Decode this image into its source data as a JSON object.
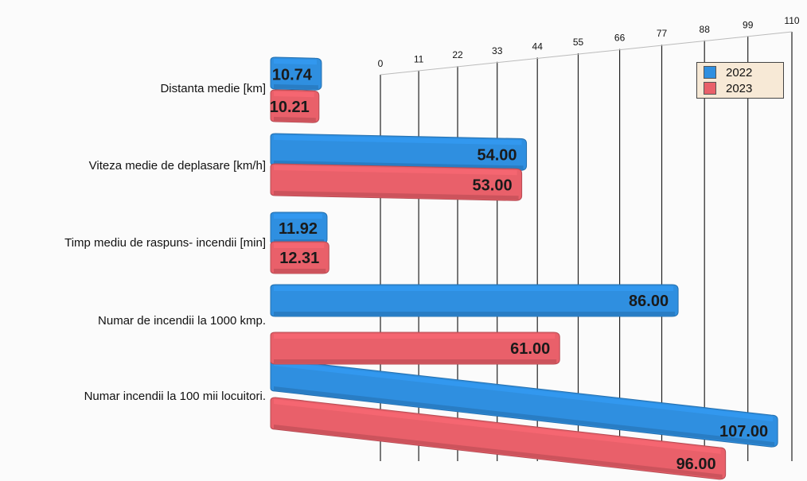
{
  "chart_data": {
    "type": "bar",
    "orientation": "horizontal",
    "title": "",
    "xlabel": "",
    "ylabel": "",
    "xlim": [
      0,
      110
    ],
    "xticks": [
      "0",
      "11",
      "22",
      "33",
      "44",
      "55",
      "66",
      "77",
      "88",
      "99",
      "110"
    ],
    "grid": true,
    "legend_position": "top-right",
    "categories": [
      "Distanta medie [km]",
      "Viteza medie de deplasare [km/h]",
      "Timp mediu de raspuns- incendii [min]",
      "Numar de incendii la 1000 kmp.",
      "Numar incendii la 100 mii locuitori."
    ],
    "series": [
      {
        "name": "2022",
        "color": "#2f8fe0",
        "values": [
          10.74,
          54.0,
          11.92,
          86.0,
          107.0
        ],
        "labels": [
          "10.74",
          "54.00",
          "11.92",
          "86.00",
          "107.00"
        ]
      },
      {
        "name": "2023",
        "color": "#e9606a",
        "values": [
          10.21,
          53.0,
          12.31,
          61.0,
          96.0
        ],
        "labels": [
          "10.21",
          "53.00",
          "12.31",
          "61.00",
          "96.00"
        ]
      }
    ]
  }
}
